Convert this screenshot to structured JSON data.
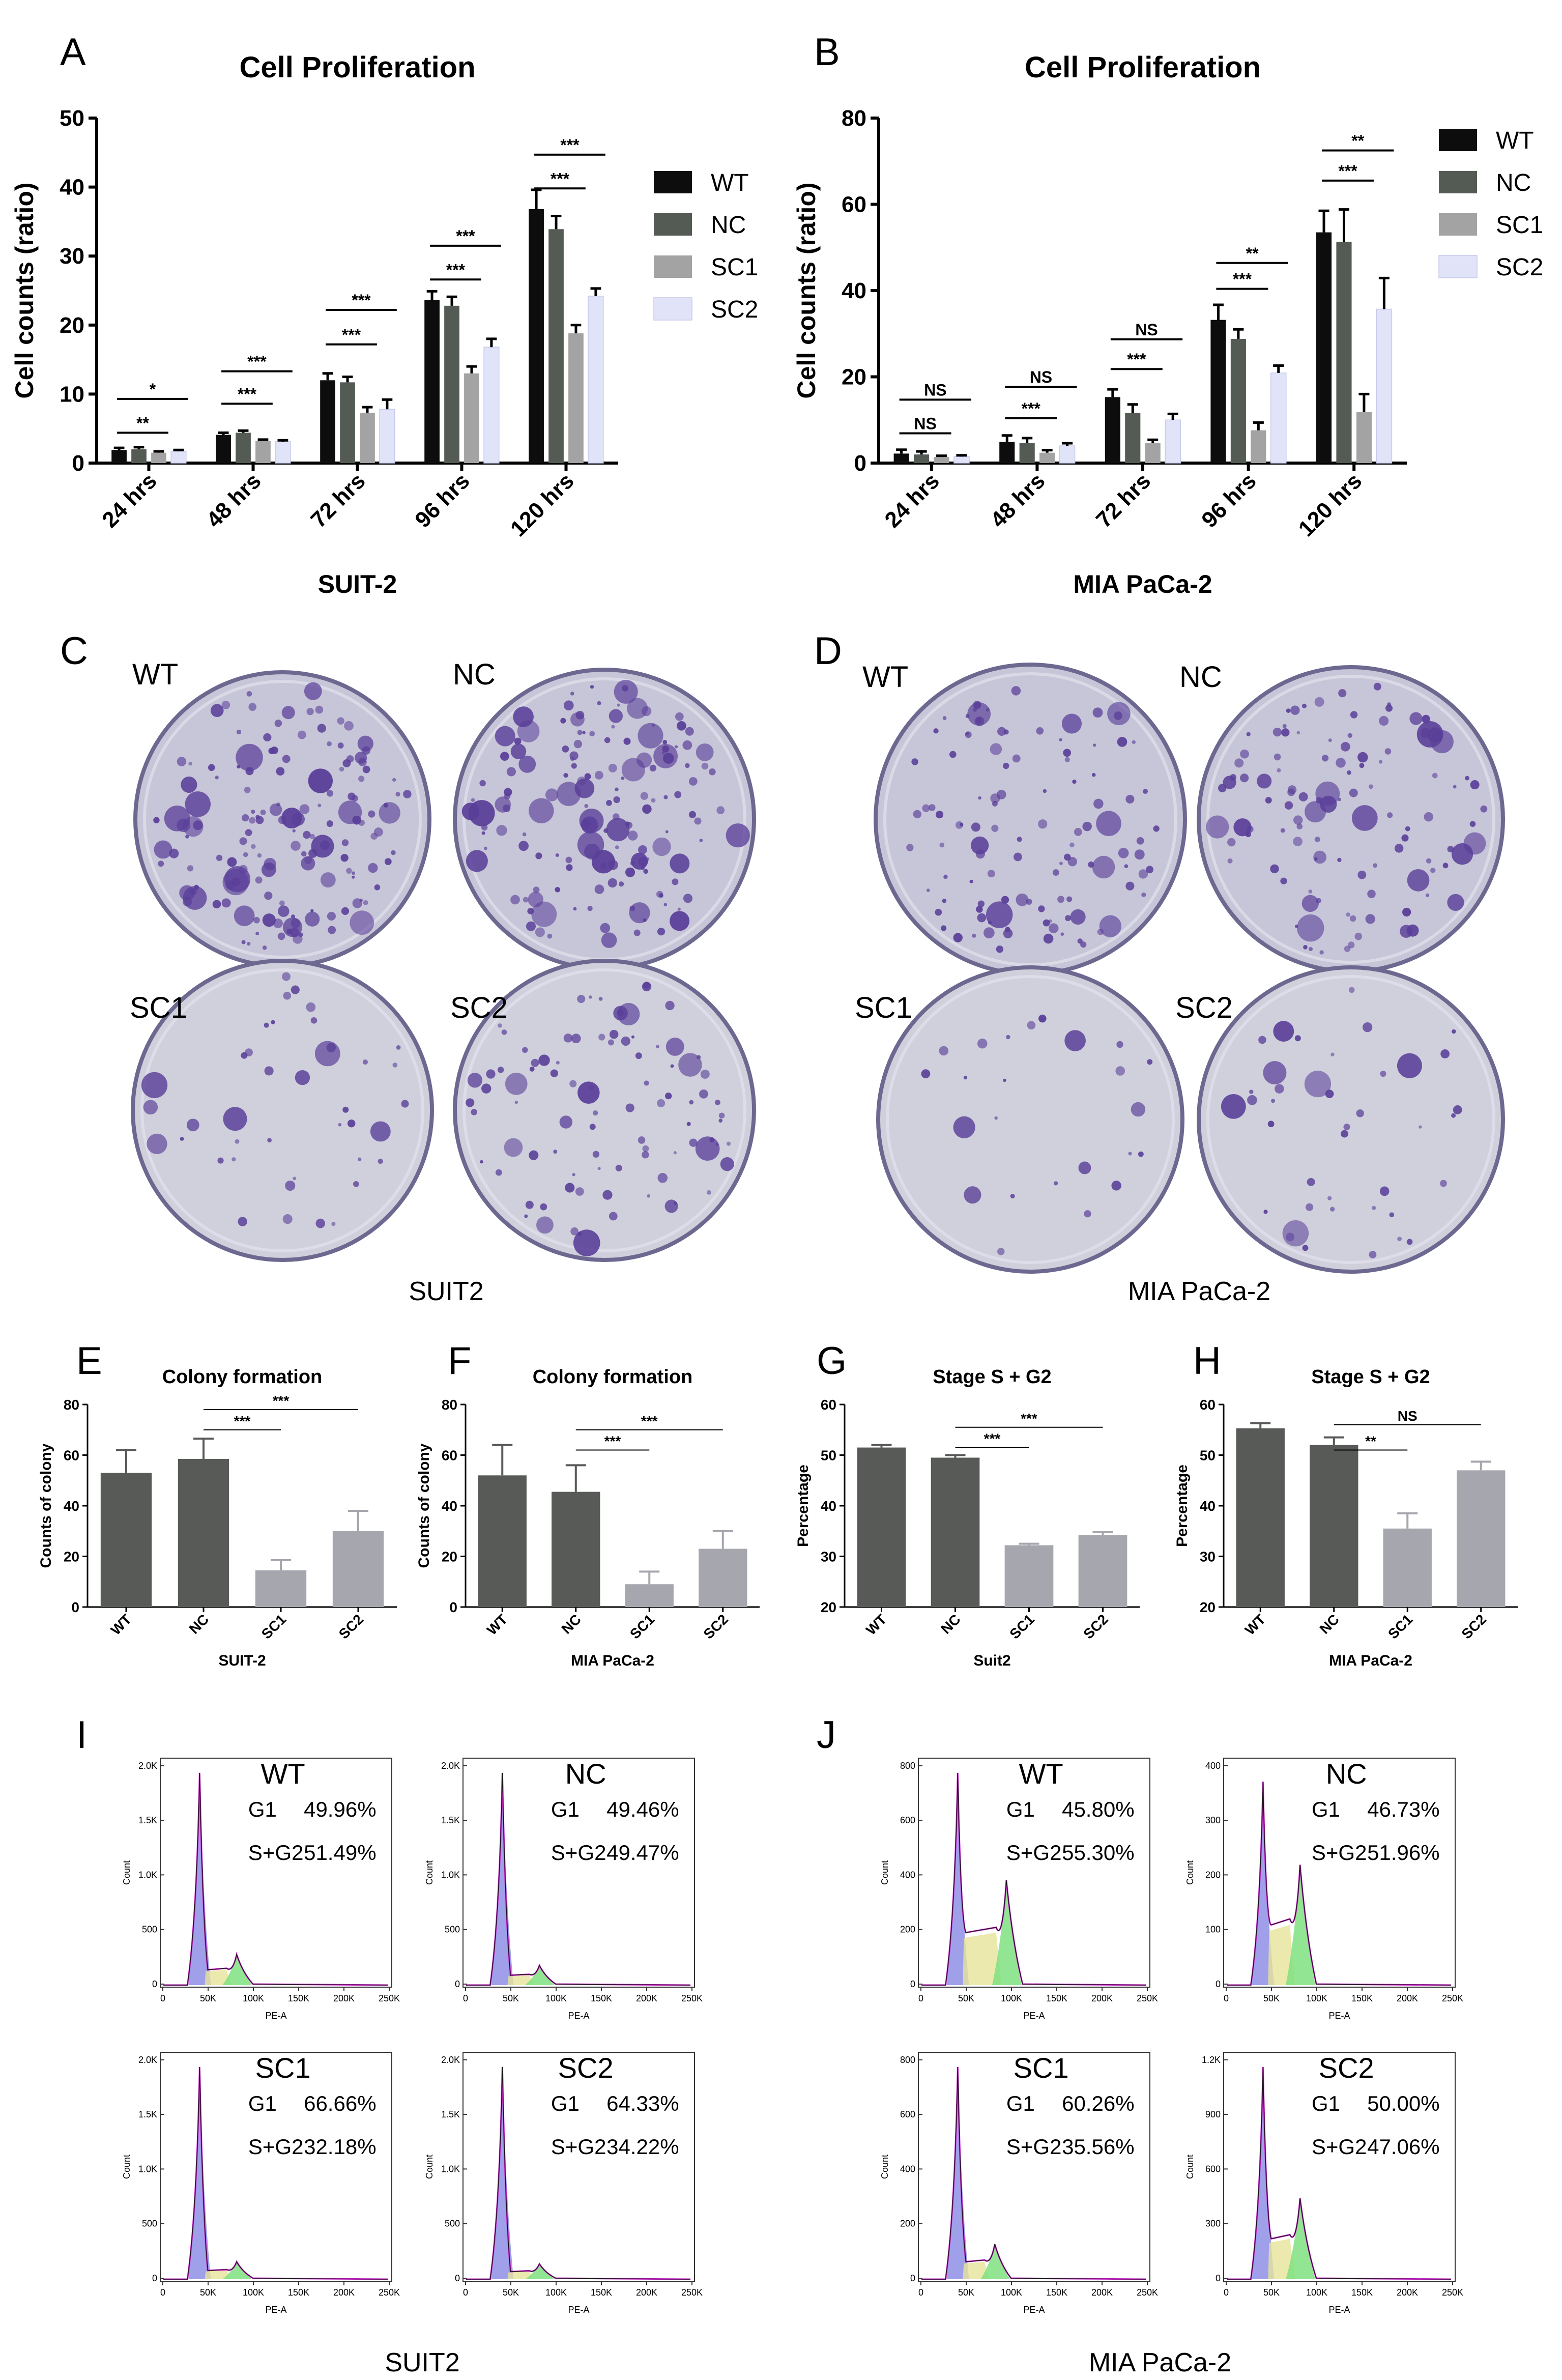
{
  "colors": {
    "WT": "#0d0d0d",
    "NC": "#545a54",
    "SC1": "#a3a3a3",
    "SC2": "#e1e4f8",
    "colony_dark": "#585a58",
    "colony_light": "#a6a6ae",
    "plate_bg": "#c9c7d8",
    "colony": "#5a3f99"
  },
  "panels": {
    "A": "A",
    "B": "B",
    "C": "C",
    "D": "D",
    "E": "E",
    "F": "F",
    "G": "G",
    "H": "H",
    "I": "I",
    "J": "J"
  },
  "chart_data": [
    {
      "id": "A",
      "type": "bar",
      "title": "Cell Proliferation",
      "xlabel": "SUIT-2",
      "ylabel": "Cell counts (ratio)",
      "ylim": [
        0,
        50
      ],
      "yticks": [
        "0",
        "10",
        "20",
        "30",
        "40",
        "50"
      ],
      "categories": [
        "24 hrs",
        "48 hrs",
        "72 hrs",
        "96 hrs",
        "120 hrs"
      ],
      "series": [
        {
          "name": "WT",
          "values": [
            1.9,
            4.1,
            12.0,
            23.6,
            36.8
          ],
          "errors": [
            0.3,
            0.3,
            1.0,
            1.3,
            2.8
          ]
        },
        {
          "name": "NC",
          "values": [
            2.0,
            4.4,
            11.7,
            22.8,
            33.9
          ],
          "errors": [
            0.3,
            0.3,
            0.8,
            1.3,
            1.9
          ]
        },
        {
          "name": "SC1",
          "values": [
            1.5,
            3.2,
            7.3,
            13.0,
            18.8
          ],
          "errors": [
            0.2,
            0.2,
            0.8,
            1.0,
            1.2
          ]
        },
        {
          "name": "SC2",
          "values": [
            1.7,
            3.1,
            7.8,
            16.8,
            24.2
          ],
          "errors": [
            0.2,
            0.2,
            1.4,
            1.2,
            1.1
          ]
        }
      ],
      "legend": "right",
      "significance": [
        {
          "group": 0,
          "from": 0,
          "to": 3,
          "label": "*",
          "y": 9.3
        },
        {
          "group": 0,
          "from": 0,
          "to": 2,
          "label": "**",
          "y": 4.4
        },
        {
          "group": 1,
          "from": 0,
          "to": 3,
          "label": "***",
          "y": 13.3
        },
        {
          "group": 1,
          "from": 0,
          "to": 2,
          "label": "***",
          "y": 8.6
        },
        {
          "group": 2,
          "from": 0,
          "to": 3,
          "label": "***",
          "y": 22.2
        },
        {
          "group": 2,
          "from": 0,
          "to": 2,
          "label": "***",
          "y": 17.2
        },
        {
          "group": 3,
          "from": 0,
          "to": 3,
          "label": "***",
          "y": 31.5
        },
        {
          "group": 3,
          "from": 0,
          "to": 2,
          "label": "***",
          "y": 26.6
        },
        {
          "group": 4,
          "from": 0,
          "to": 3,
          "label": "***",
          "y": 44.7
        },
        {
          "group": 4,
          "from": 0,
          "to": 2,
          "label": "***",
          "y": 39.8
        }
      ]
    },
    {
      "id": "B",
      "type": "bar",
      "title": "Cell Proliferation",
      "xlabel": "MIA PaCa-2",
      "ylabel": "Cell counts (ratio)",
      "ylim": [
        0,
        80
      ],
      "yticks": [
        "0",
        "20",
        "40",
        "60",
        "80"
      ],
      "categories": [
        "24 hrs",
        "48 hrs",
        "72 hrs",
        "96 hrs",
        "120 hrs"
      ],
      "series": [
        {
          "name": "WT",
          "values": [
            2.2,
            4.9,
            15.3,
            33.2,
            53.5
          ],
          "errors": [
            0.9,
            1.5,
            1.8,
            3.5,
            5.0
          ]
        },
        {
          "name": "NC",
          "values": [
            2.0,
            4.6,
            11.6,
            28.8,
            51.3
          ],
          "errors": [
            0.7,
            1.2,
            2.0,
            2.2,
            7.5
          ]
        },
        {
          "name": "SC1",
          "values": [
            1.4,
            2.4,
            4.6,
            7.6,
            11.8
          ],
          "errors": [
            0.3,
            0.6,
            0.8,
            1.8,
            4.2
          ]
        },
        {
          "name": "SC2",
          "values": [
            1.5,
            4.0,
            10.0,
            20.9,
            35.7
          ],
          "errors": [
            0.3,
            0.6,
            1.4,
            1.7,
            7.2
          ]
        }
      ],
      "legend": "right",
      "significance": [
        {
          "group": 0,
          "from": 0,
          "to": 3,
          "label": "NS",
          "y": 14.7
        },
        {
          "group": 0,
          "from": 0,
          "to": 2,
          "label": "NS",
          "y": 6.9
        },
        {
          "group": 1,
          "from": 0,
          "to": 3,
          "label": "NS",
          "y": 17.7
        },
        {
          "group": 1,
          "from": 0,
          "to": 2,
          "label": "***",
          "y": 10.4
        },
        {
          "group": 2,
          "from": 0,
          "to": 3,
          "label": "NS",
          "y": 28.7
        },
        {
          "group": 2,
          "from": 0,
          "to": 2,
          "label": "***",
          "y": 21.8
        },
        {
          "group": 3,
          "from": 0,
          "to": 3,
          "label": "**",
          "y": 46.4
        },
        {
          "group": 3,
          "from": 0,
          "to": 2,
          "label": "***",
          "y": 40.4
        },
        {
          "group": 4,
          "from": 0,
          "to": 3,
          "label": "**",
          "y": 72.5
        },
        {
          "group": 4,
          "from": 0,
          "to": 2,
          "label": "***",
          "y": 65.5
        }
      ]
    },
    {
      "id": "E",
      "type": "bar",
      "title": "Colony formation",
      "xlabel": "SUIT-2",
      "ylabel": "Counts of colony",
      "ylim": [
        0,
        80
      ],
      "yticks": [
        "0",
        "20",
        "40",
        "60",
        "80"
      ],
      "categories": [
        "WT",
        "NC",
        "SC1",
        "SC2"
      ],
      "values": [
        53,
        58.5,
        14.5,
        30
      ],
      "errors": [
        9,
        8,
        4,
        8
      ],
      "bar_colors": [
        "colony_dark",
        "colony_dark",
        "colony_light",
        "colony_light"
      ],
      "significance": [
        {
          "from": 1,
          "to": 2,
          "label": "***",
          "y": 70
        },
        {
          "from": 1,
          "to": 3,
          "label": "***",
          "y": 78
        }
      ]
    },
    {
      "id": "F",
      "type": "bar",
      "title": "Colony formation",
      "xlabel": "MIA PaCa-2",
      "ylabel": "Counts of colony",
      "ylim": [
        0,
        80
      ],
      "yticks": [
        "0",
        "20",
        "40",
        "60",
        "80"
      ],
      "categories": [
        "WT",
        "NC",
        "SC1",
        "SC2"
      ],
      "values": [
        52,
        45.5,
        9,
        23
      ],
      "errors": [
        12,
        10.5,
        5,
        7
      ],
      "bar_colors": [
        "colony_dark",
        "colony_dark",
        "colony_light",
        "colony_light"
      ],
      "significance": [
        {
          "from": 1,
          "to": 2,
          "label": "***",
          "y": 62
        },
        {
          "from": 1,
          "to": 3,
          "label": "***",
          "y": 70
        }
      ]
    },
    {
      "id": "G",
      "type": "bar",
      "title": "Stage S + G2",
      "xlabel": "Suit2",
      "ylabel": "Percentage",
      "ylim": [
        20,
        60
      ],
      "yticks": [
        "20",
        "30",
        "40",
        "50",
        "60"
      ],
      "categories": [
        "WT",
        "NC",
        "SC1",
        "SC2"
      ],
      "values": [
        51.5,
        49.5,
        32.2,
        34.2
      ],
      "errors": [
        0.5,
        0.5,
        0.3,
        0.6
      ],
      "bar_colors": [
        "colony_dark",
        "colony_dark",
        "colony_light",
        "colony_light"
      ],
      "significance": [
        {
          "from": 1,
          "to": 2,
          "label": "***",
          "y": 51.5
        },
        {
          "from": 1,
          "to": 3,
          "label": "***",
          "y": 55.5
        }
      ]
    },
    {
      "id": "H",
      "type": "bar",
      "title": "Stage S + G2",
      "xlabel": "MIA PaCa-2",
      "ylabel": "Percentage",
      "ylim": [
        20,
        60
      ],
      "yticks": [
        "20",
        "30",
        "40",
        "50",
        "60"
      ],
      "categories": [
        "WT",
        "NC",
        "SC1",
        "SC2"
      ],
      "values": [
        55.3,
        52,
        35.5,
        47
      ],
      "errors": [
        1.0,
        1.5,
        3.0,
        1.7
      ],
      "bar_colors": [
        "colony_dark",
        "colony_dark",
        "colony_light",
        "colony_light"
      ],
      "significance": [
        {
          "from": 1,
          "to": 2,
          "label": "**",
          "y": 51
        },
        {
          "from": 1,
          "to": 3,
          "label": "NS",
          "y": 56
        }
      ]
    }
  ],
  "plates": {
    "C": {
      "labels": [
        "WT",
        "NC",
        "SC1",
        "SC2"
      ],
      "caption": "SUIT2"
    },
    "D": {
      "labels": [
        "WT",
        "NC",
        "SC1",
        "SC2"
      ],
      "caption": "MIA PaCa-2"
    }
  },
  "flow": {
    "I": {
      "caption": "SUIT2",
      "yticks": [
        "0",
        "500",
        "1.0K",
        "1.5K",
        "2.0K"
      ],
      "xticks": [
        "0",
        "50K",
        "100K",
        "150K",
        "200K",
        "250K"
      ],
      "xlabel": "PE-A",
      "ylabel": "Count",
      "panels": [
        {
          "title": "WT",
          "g1": "G1",
          "g1_value": "49.96%",
          "sg2": "S+G2",
          "sg2_value": "51.49%"
        },
        {
          "title": "NC",
          "g1": "G1",
          "g1_value": "49.46%",
          "sg2": "S+G2",
          "sg2_value": "49.47%"
        },
        {
          "title": "SC1",
          "g1": "G1",
          "g1_value": "66.66%",
          "sg2": "S+G2",
          "sg2_value": "32.18%"
        },
        {
          "title": "SC2",
          "g1": "G1",
          "g1_value": "64.33%",
          "sg2": "S+G2",
          "sg2_value": "34.22%"
        }
      ]
    },
    "J": {
      "caption": "MIA PaCa-2",
      "xticks": [
        "0",
        "50K",
        "100K",
        "150K",
        "200K",
        "250K"
      ],
      "xlabel": "PE-A",
      "ylabel": "Count",
      "panels": [
        {
          "title": "WT",
          "g1": "G1",
          "g1_value": "45.80%",
          "sg2": "S+G2",
          "sg2_value": "55.30%",
          "yticks": [
            "0",
            "200",
            "400",
            "600",
            "800"
          ]
        },
        {
          "title": "NC",
          "g1": "G1",
          "g1_value": "46.73%",
          "sg2": "S+G2",
          "sg2_value": "51.96%",
          "yticks": [
            "0",
            "100",
            "200",
            "300",
            "400"
          ]
        },
        {
          "title": "SC1",
          "g1": "G1",
          "g1_value": "60.26%",
          "sg2": "S+G2",
          "sg2_value": "35.56%",
          "yticks": [
            "0",
            "200",
            "400",
            "600",
            "800"
          ]
        },
        {
          "title": "SC2",
          "g1": "G1",
          "g1_value": "50.00%",
          "sg2": "S+G2",
          "sg2_value": "47.06%",
          "yticks": [
            "0",
            "300",
            "600",
            "900",
            "1.2K"
          ]
        }
      ]
    }
  }
}
